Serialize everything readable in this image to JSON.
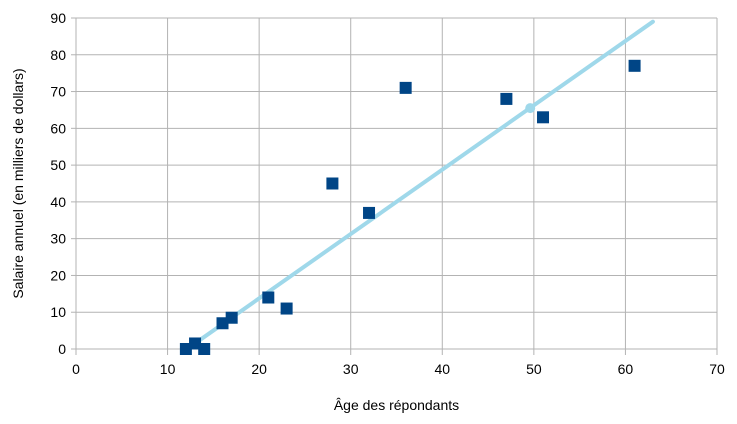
{
  "chart_data": {
    "type": "scatter",
    "xlabel": "Âge des répondants",
    "ylabel": "Salaire annuel (en milliers de dollars)",
    "xlim": [
      0,
      70
    ],
    "ylim": [
      0,
      90
    ],
    "xticks": [
      0,
      10,
      20,
      30,
      40,
      50,
      60,
      70
    ],
    "yticks": [
      0,
      10,
      20,
      30,
      40,
      50,
      60,
      70,
      80,
      90
    ],
    "grid": true,
    "legend": "none",
    "series": [
      {
        "marker": "square",
        "color": "#004586",
        "points": [
          [
            12,
            0
          ],
          [
            13,
            1.5
          ],
          [
            14,
            0
          ],
          [
            16,
            7
          ],
          [
            17,
            8.5
          ],
          [
            21,
            14
          ],
          [
            23,
            11
          ],
          [
            28,
            45
          ],
          [
            32,
            37
          ],
          [
            36,
            71
          ],
          [
            47,
            68
          ],
          [
            51,
            63
          ],
          [
            61,
            77
          ]
        ]
      }
    ],
    "trendline": {
      "color": "#9fd8ea",
      "x": [
        12.7,
        63
      ],
      "y": [
        1,
        89
      ],
      "marker_x": 49.6,
      "marker_y": 65.5
    }
  }
}
